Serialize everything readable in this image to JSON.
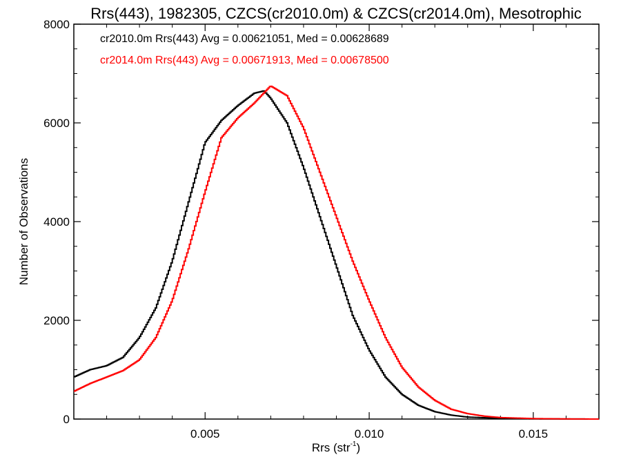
{
  "chart_data": {
    "type": "histogram",
    "title": "Rrs(443), 1982305, CZCS(cr2010.0m) & CZCS(cr2014.0m), Mesotrophic",
    "xlabel_main": "Rrs (str",
    "xlabel_sup": "-1",
    "xlabel_close": ")",
    "ylabel": "Number of Observations",
    "xlim": [
      0.001,
      0.017
    ],
    "ylim": [
      0,
      8000
    ],
    "x_ticks": [
      0.005,
      0.01,
      0.015
    ],
    "x_tick_labels": [
      "0.005",
      "0.010",
      "0.015"
    ],
    "y_ticks": [
      0,
      2000,
      4000,
      6000,
      8000
    ],
    "y_tick_labels": [
      "0",
      "2000",
      "4000",
      "6000",
      "8000"
    ],
    "grid": false,
    "legend_position": "top-left",
    "series": [
      {
        "name": "cr2010.0m",
        "legend_text": "cr2010.0m Rrs(443) Avg = 0.00621051, Med = 0.00628689",
        "color": "#000000",
        "points": [
          [
            0.001,
            850
          ],
          [
            0.0015,
            1000
          ],
          [
            0.002,
            1080
          ],
          [
            0.0025,
            1250
          ],
          [
            0.003,
            1650
          ],
          [
            0.0035,
            2250
          ],
          [
            0.004,
            3200
          ],
          [
            0.0045,
            4400
          ],
          [
            0.005,
            5600
          ],
          [
            0.0055,
            6050
          ],
          [
            0.006,
            6350
          ],
          [
            0.0065,
            6600
          ],
          [
            0.0068,
            6650
          ],
          [
            0.007,
            6500
          ],
          [
            0.0075,
            6000
          ],
          [
            0.008,
            5100
          ],
          [
            0.0085,
            4100
          ],
          [
            0.009,
            3100
          ],
          [
            0.0095,
            2100
          ],
          [
            0.01,
            1400
          ],
          [
            0.0105,
            850
          ],
          [
            0.011,
            500
          ],
          [
            0.0115,
            280
          ],
          [
            0.012,
            150
          ],
          [
            0.0125,
            80
          ],
          [
            0.013,
            40
          ],
          [
            0.014,
            15
          ],
          [
            0.015,
            5
          ],
          [
            0.016,
            2
          ],
          [
            0.017,
            0
          ]
        ]
      },
      {
        "name": "cr2014.0m",
        "legend_text": "cr2014.0m Rrs(443) Avg = 0.00671913, Med = 0.00678500",
        "color": "#ff0000",
        "points": [
          [
            0.001,
            560
          ],
          [
            0.0015,
            720
          ],
          [
            0.002,
            850
          ],
          [
            0.0025,
            980
          ],
          [
            0.003,
            1200
          ],
          [
            0.0035,
            1650
          ],
          [
            0.004,
            2400
          ],
          [
            0.0045,
            3450
          ],
          [
            0.005,
            4600
          ],
          [
            0.0055,
            5700
          ],
          [
            0.006,
            6100
          ],
          [
            0.0065,
            6400
          ],
          [
            0.007,
            6750
          ],
          [
            0.0075,
            6550
          ],
          [
            0.008,
            5900
          ],
          [
            0.0085,
            5000
          ],
          [
            0.009,
            4100
          ],
          [
            0.0095,
            3200
          ],
          [
            0.01,
            2400
          ],
          [
            0.0105,
            1650
          ],
          [
            0.011,
            1050
          ],
          [
            0.0115,
            650
          ],
          [
            0.012,
            380
          ],
          [
            0.0125,
            200
          ],
          [
            0.013,
            110
          ],
          [
            0.0135,
            60
          ],
          [
            0.014,
            30
          ],
          [
            0.015,
            10
          ],
          [
            0.016,
            3
          ],
          [
            0.017,
            0
          ]
        ]
      }
    ]
  }
}
